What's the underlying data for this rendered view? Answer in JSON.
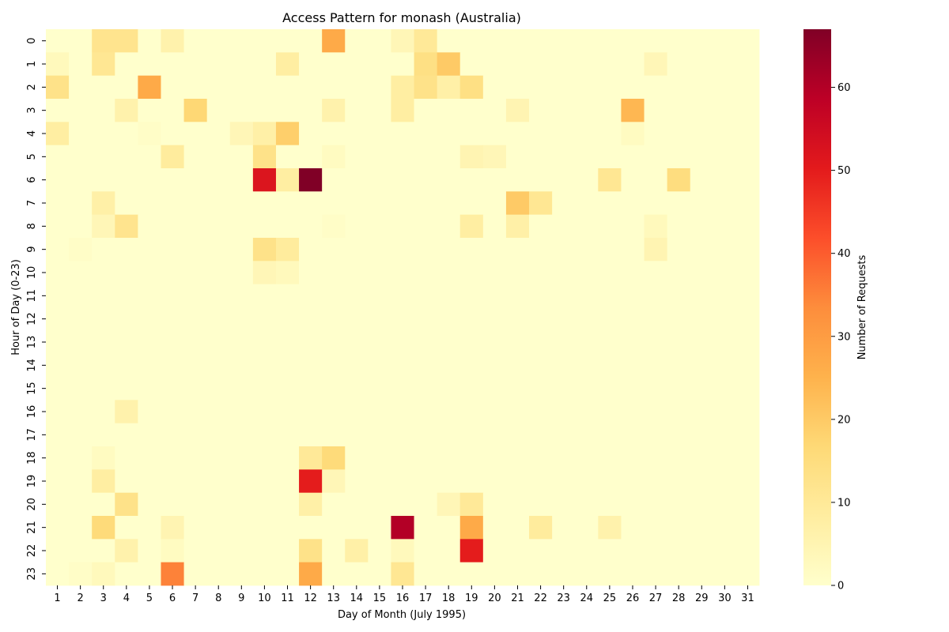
{
  "chart_data": {
    "type": "heatmap",
    "title": "Access Pattern for monash (Australia)",
    "xlabel": "Day of Month (July 1995)",
    "ylabel": "Hour of Day (0-23)",
    "colorbar_label": "Number of Requests",
    "colormap": "YlOrRd",
    "vmin": 0,
    "vmax": 67,
    "colorbar_ticks": [
      0,
      10,
      20,
      30,
      40,
      50,
      60
    ],
    "x": [
      1,
      2,
      3,
      4,
      5,
      6,
      7,
      8,
      9,
      10,
      11,
      12,
      13,
      14,
      15,
      16,
      17,
      18,
      19,
      20,
      21,
      22,
      23,
      24,
      25,
      26,
      27,
      28,
      29,
      30,
      31
    ],
    "y": [
      0,
      1,
      2,
      3,
      4,
      5,
      6,
      7,
      8,
      9,
      10,
      11,
      12,
      13,
      14,
      15,
      16,
      17,
      18,
      19,
      20,
      21,
      22,
      23
    ],
    "cells": [
      {
        "hour": 0,
        "day": 3,
        "value": 12
      },
      {
        "hour": 0,
        "day": 4,
        "value": 12
      },
      {
        "hour": 0,
        "day": 6,
        "value": 6
      },
      {
        "hour": 0,
        "day": 13,
        "value": 27
      },
      {
        "hour": 0,
        "day": 16,
        "value": 4
      },
      {
        "hour": 0,
        "day": 17,
        "value": 10
      },
      {
        "hour": 1,
        "day": 1,
        "value": 3
      },
      {
        "hour": 1,
        "day": 3,
        "value": 11
      },
      {
        "hour": 1,
        "day": 11,
        "value": 8
      },
      {
        "hour": 1,
        "day": 17,
        "value": 14
      },
      {
        "hour": 1,
        "day": 18,
        "value": 20
      },
      {
        "hour": 1,
        "day": 27,
        "value": 4
      },
      {
        "hour": 2,
        "day": 1,
        "value": 13
      },
      {
        "hour": 2,
        "day": 5,
        "value": 27
      },
      {
        "hour": 2,
        "day": 16,
        "value": 8
      },
      {
        "hour": 2,
        "day": 17,
        "value": 13
      },
      {
        "hour": 2,
        "day": 18,
        "value": 7
      },
      {
        "hour": 2,
        "day": 19,
        "value": 14
      },
      {
        "hour": 3,
        "day": 4,
        "value": 6
      },
      {
        "hour": 3,
        "day": 7,
        "value": 17
      },
      {
        "hour": 3,
        "day": 13,
        "value": 6
      },
      {
        "hour": 3,
        "day": 16,
        "value": 8
      },
      {
        "hour": 3,
        "day": 21,
        "value": 5
      },
      {
        "hour": 3,
        "day": 26,
        "value": 24
      },
      {
        "hour": 4,
        "day": 1,
        "value": 8
      },
      {
        "hour": 4,
        "day": 5,
        "value": 1
      },
      {
        "hour": 4,
        "day": 9,
        "value": 4
      },
      {
        "hour": 4,
        "day": 10,
        "value": 7
      },
      {
        "hour": 4,
        "day": 11,
        "value": 19
      },
      {
        "hour": 4,
        "day": 26,
        "value": 2
      },
      {
        "hour": 5,
        "day": 6,
        "value": 9
      },
      {
        "hour": 5,
        "day": 10,
        "value": 13
      },
      {
        "hour": 5,
        "day": 13,
        "value": 2
      },
      {
        "hour": 5,
        "day": 19,
        "value": 5
      },
      {
        "hour": 5,
        "day": 20,
        "value": 4
      },
      {
        "hour": 6,
        "day": 10,
        "value": 52
      },
      {
        "hour": 6,
        "day": 11,
        "value": 8
      },
      {
        "hour": 6,
        "day": 12,
        "value": 67
      },
      {
        "hour": 6,
        "day": 25,
        "value": 11
      },
      {
        "hour": 6,
        "day": 28,
        "value": 15
      },
      {
        "hour": 7,
        "day": 3,
        "value": 7
      },
      {
        "hour": 7,
        "day": 21,
        "value": 20
      },
      {
        "hour": 7,
        "day": 22,
        "value": 11
      },
      {
        "hour": 8,
        "day": 3,
        "value": 4
      },
      {
        "hour": 8,
        "day": 4,
        "value": 12
      },
      {
        "hour": 8,
        "day": 13,
        "value": 1
      },
      {
        "hour": 8,
        "day": 19,
        "value": 8
      },
      {
        "hour": 8,
        "day": 21,
        "value": 7
      },
      {
        "hour": 8,
        "day": 27,
        "value": 3
      },
      {
        "hour": 9,
        "day": 2,
        "value": 1
      },
      {
        "hour": 9,
        "day": 10,
        "value": 13
      },
      {
        "hour": 9,
        "day": 11,
        "value": 9
      },
      {
        "hour": 9,
        "day": 27,
        "value": 5
      },
      {
        "hour": 10,
        "day": 10,
        "value": 4
      },
      {
        "hour": 10,
        "day": 11,
        "value": 3
      },
      {
        "hour": 16,
        "day": 4,
        "value": 6
      },
      {
        "hour": 18,
        "day": 3,
        "value": 2
      },
      {
        "hour": 18,
        "day": 12,
        "value": 10
      },
      {
        "hour": 18,
        "day": 13,
        "value": 16
      },
      {
        "hour": 19,
        "day": 3,
        "value": 8
      },
      {
        "hour": 19,
        "day": 12,
        "value": 50
      },
      {
        "hour": 19,
        "day": 13,
        "value": 4
      },
      {
        "hour": 20,
        "day": 4,
        "value": 13
      },
      {
        "hour": 20,
        "day": 12,
        "value": 7
      },
      {
        "hour": 20,
        "day": 18,
        "value": 4
      },
      {
        "hour": 20,
        "day": 19,
        "value": 10
      },
      {
        "hour": 21,
        "day": 3,
        "value": 16
      },
      {
        "hour": 21,
        "day": 6,
        "value": 5
      },
      {
        "hour": 21,
        "day": 16,
        "value": 60
      },
      {
        "hour": 21,
        "day": 19,
        "value": 27
      },
      {
        "hour": 21,
        "day": 22,
        "value": 9
      },
      {
        "hour": 21,
        "day": 25,
        "value": 6
      },
      {
        "hour": 22,
        "day": 4,
        "value": 6
      },
      {
        "hour": 22,
        "day": 6,
        "value": 2
      },
      {
        "hour": 22,
        "day": 12,
        "value": 13
      },
      {
        "hour": 22,
        "day": 14,
        "value": 7
      },
      {
        "hour": 22,
        "day": 16,
        "value": 3
      },
      {
        "hour": 22,
        "day": 19,
        "value": 50
      },
      {
        "hour": 23,
        "day": 2,
        "value": 1
      },
      {
        "hour": 23,
        "day": 3,
        "value": 3
      },
      {
        "hour": 23,
        "day": 6,
        "value": 35
      },
      {
        "hour": 23,
        "day": 12,
        "value": 27
      },
      {
        "hour": 23,
        "day": 16,
        "value": 11
      }
    ]
  }
}
